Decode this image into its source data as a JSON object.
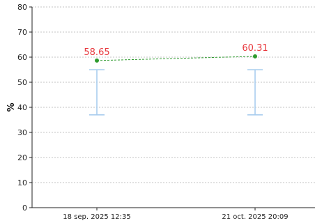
{
  "chart_data": {
    "type": "line",
    "title": "",
    "xlabel": "",
    "ylabel": "%",
    "ylim": [
      0,
      80
    ],
    "y_ticks": [
      0,
      10,
      20,
      30,
      40,
      50,
      60,
      70,
      80
    ],
    "grid": true,
    "categories": [
      "18 sep. 2025 12:35",
      "21 oct. 2025 20:09"
    ],
    "series": [
      {
        "values": [
          58.65,
          60.31
        ],
        "data_labels": [
          "58.65",
          "60.31"
        ],
        "color": "#2e9b2e",
        "label_color": "#e8383d"
      }
    ],
    "reference_range": {
      "low": 37,
      "high": 55,
      "color": "#a9cdee"
    }
  }
}
